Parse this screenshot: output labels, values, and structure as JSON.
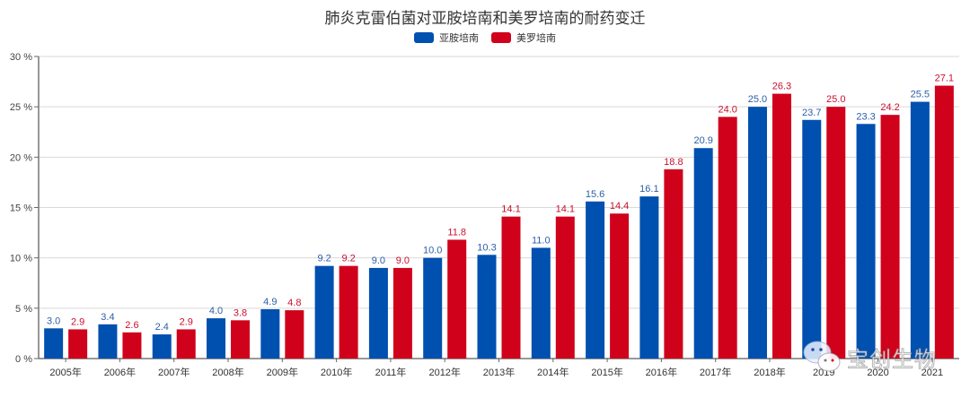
{
  "chart_data": {
    "type": "bar",
    "title": "肺炎克雷伯菌对亚胺培南和美罗培南的耐药变迁",
    "xlabel": "",
    "ylabel": "",
    "ylim": [
      0,
      30
    ],
    "yticks": [
      "0 %",
      "5 %",
      "10 %",
      "15 %",
      "20 %",
      "25 %",
      "30 %"
    ],
    "grid": true,
    "legend_position": "top-center",
    "categories": [
      "2005年",
      "2006年",
      "2007年",
      "2008年",
      "2009年",
      "2010年",
      "2011年",
      "2012年",
      "2013年",
      "2014年",
      "2015年",
      "2016年",
      "2017年",
      "2018年",
      "2019",
      "2020",
      "2021"
    ],
    "series": [
      {
        "name": "亚胺培南",
        "color": "#0050b0",
        "label_color": "#2a5fa8",
        "values": [
          3.0,
          3.4,
          2.4,
          4.0,
          4.9,
          9.2,
          9.0,
          10.0,
          10.3,
          11.0,
          15.6,
          16.1,
          20.9,
          25.0,
          23.7,
          23.3,
          25.5
        ]
      },
      {
        "name": "美罗培南",
        "color": "#d0021b",
        "label_color": "#c8102e",
        "values": [
          2.9,
          2.6,
          2.9,
          3.8,
          4.8,
          9.2,
          9.0,
          11.8,
          14.1,
          14.1,
          14.4,
          18.8,
          24.0,
          26.3,
          25.0,
          24.2,
          27.1
        ]
      }
    ]
  },
  "watermark": {
    "icon": "wechat-icon",
    "text": "宝创生物"
  }
}
